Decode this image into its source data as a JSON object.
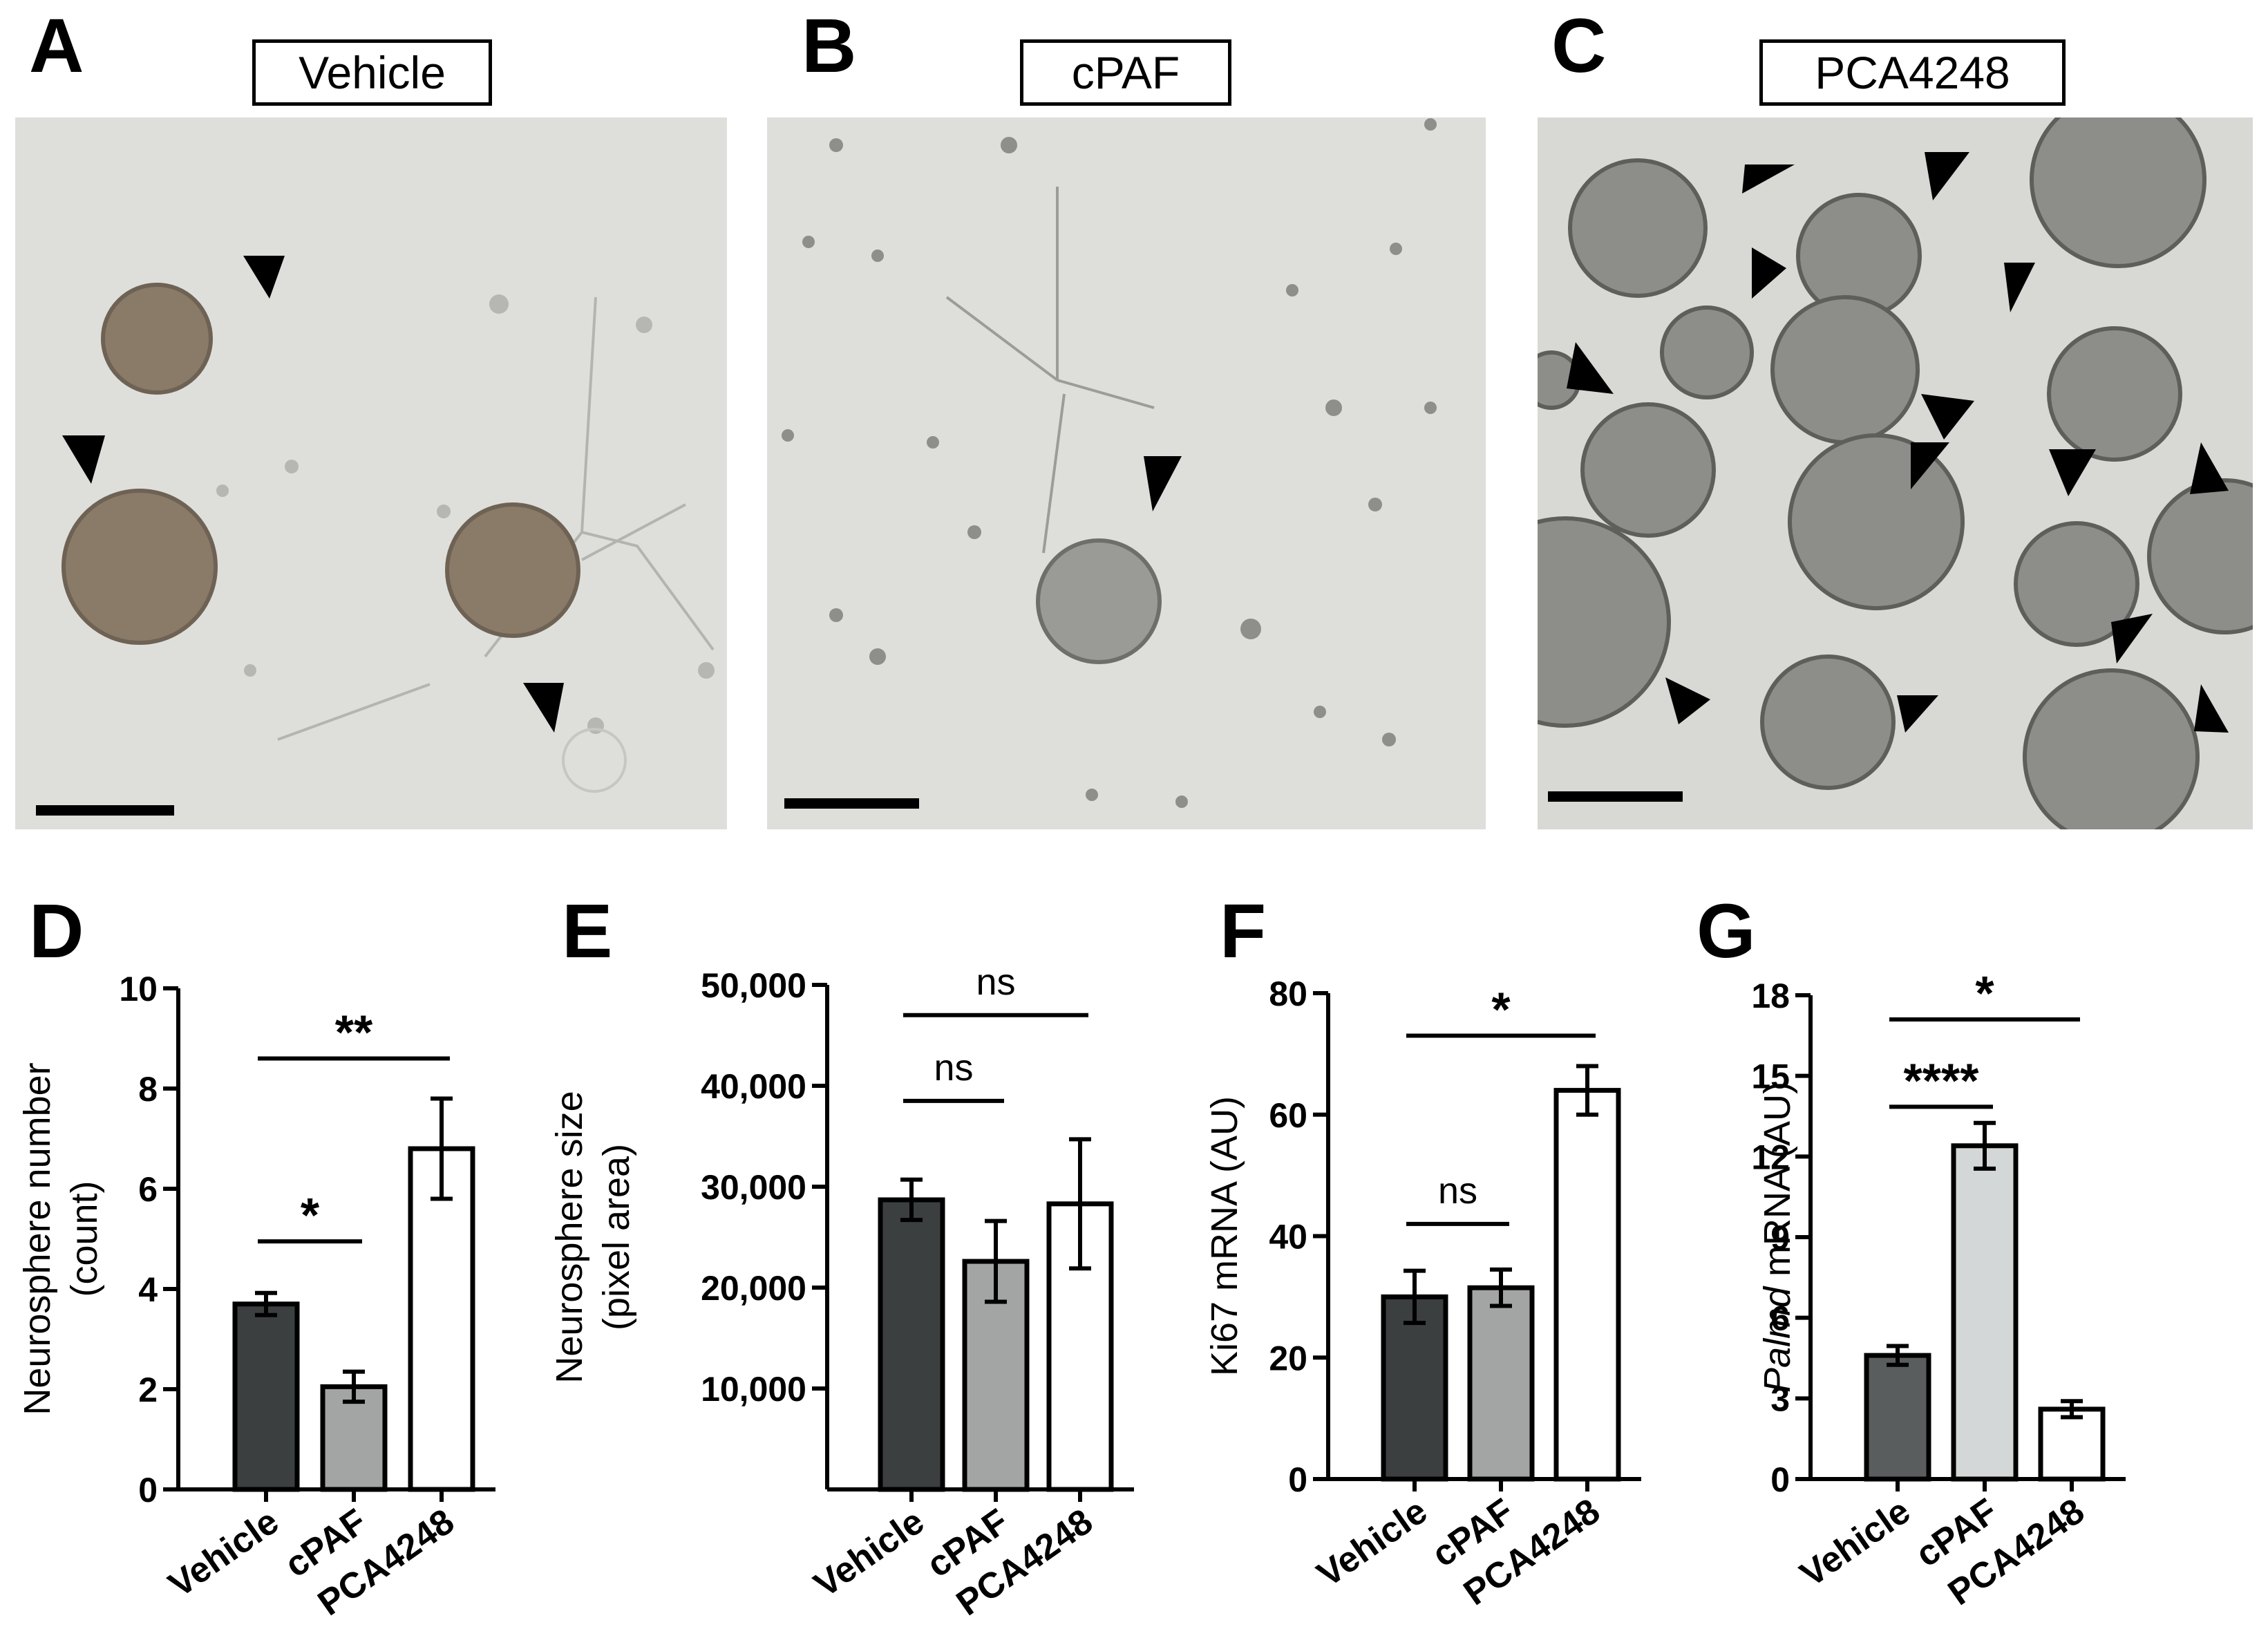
{
  "colors": {
    "vehicle_bar": "#3b3f3f",
    "cpaf_bar": "#a3a5a5",
    "pca4248_bar": "#ffffff",
    "g_vehicle_bar": "#5a5d5e",
    "g_cpaf_bar": "#d4d7d7",
    "micrograph_bg": "#dcdcd8",
    "sphere_fill": "#8a7c6c",
    "sphere_fill_bc": "#9a9a96",
    "arrowhead": "#000000"
  },
  "panels_images": [
    {
      "label": "A",
      "title": "Vehicle"
    },
    {
      "label": "B",
      "title": "cPAF"
    },
    {
      "label": "C",
      "title": "PCA4248"
    }
  ],
  "chart_data": [
    {
      "panel": "D",
      "type": "bar",
      "categories": [
        "Vehicle",
        "cPAF",
        "PCA4248"
      ],
      "values": [
        3.7,
        2.05,
        6.8
      ],
      "errors": [
        0.22,
        0.3,
        1.0
      ],
      "ylabel": "Neurosphere number\n(count)",
      "ylim": [
        0,
        10
      ],
      "yticks": [
        "0",
        "2",
        "4",
        "6",
        "8",
        "10"
      ],
      "ytick_values": [
        0,
        2,
        4,
        6,
        8,
        10
      ],
      "significance": [
        {
          "from": 0,
          "to": 1,
          "label": "*",
          "y": 4.95
        },
        {
          "from": 0,
          "to": 2,
          "label": "**",
          "y": 8.6
        }
      ]
    },
    {
      "panel": "E",
      "type": "bar",
      "categories": [
        "Vehicle",
        "cPAF",
        "PCA4248"
      ],
      "values": [
        28700,
        22600,
        28300
      ],
      "errors": [
        2000,
        4000,
        6400
      ],
      "ylabel": "Neurosphere size\n(pixel area)",
      "ylim": [
        0,
        50000
      ],
      "yticks": [
        "10,000",
        "20,000",
        "30,000",
        "40,000",
        "50,000"
      ],
      "ytick_values": [
        10000,
        20000,
        30000,
        40000,
        50000
      ],
      "significance": [
        {
          "from": 0,
          "to": 1,
          "label": "ns",
          "y": 38500
        },
        {
          "from": 0,
          "to": 2,
          "label": "ns",
          "y": 47000
        }
      ]
    },
    {
      "panel": "F",
      "type": "bar",
      "categories": [
        "Vehicle",
        "cPAF",
        "PCA4248"
      ],
      "values": [
        30,
        31.5,
        64
      ],
      "errors": [
        4.3,
        3,
        4
      ],
      "ylabel": "Ki67 mRNA (AU)",
      "ylim": [
        0,
        80
      ],
      "yticks": [
        "0",
        "20",
        "40",
        "60",
        "80"
      ],
      "ytick_values": [
        0,
        20,
        40,
        60,
        80
      ],
      "significance": [
        {
          "from": 0,
          "to": 1,
          "label": "ns",
          "y": 42
        },
        {
          "from": 0,
          "to": 2,
          "label": "*",
          "y": 73
        }
      ]
    },
    {
      "panel": "G",
      "type": "bar",
      "categories": [
        "Vehicle",
        "cPAF",
        "PCA4248"
      ],
      "values": [
        4.6,
        12.4,
        2.6
      ],
      "errors": [
        0.35,
        0.85,
        0.3
      ],
      "ylabel_italic": "Palmd",
      "ylabel": " mRNA (AU)",
      "ylim": [
        0,
        18
      ],
      "yticks": [
        "0",
        "3",
        "6",
        "9",
        "12",
        "15",
        "18"
      ],
      "ytick_values": [
        0,
        3,
        6,
        9,
        12,
        15,
        18
      ],
      "significance": [
        {
          "from": 0,
          "to": 1,
          "label": "****",
          "y": 13.85
        },
        {
          "from": 0,
          "to": 2,
          "label": "*",
          "y": 17.1
        }
      ]
    }
  ]
}
